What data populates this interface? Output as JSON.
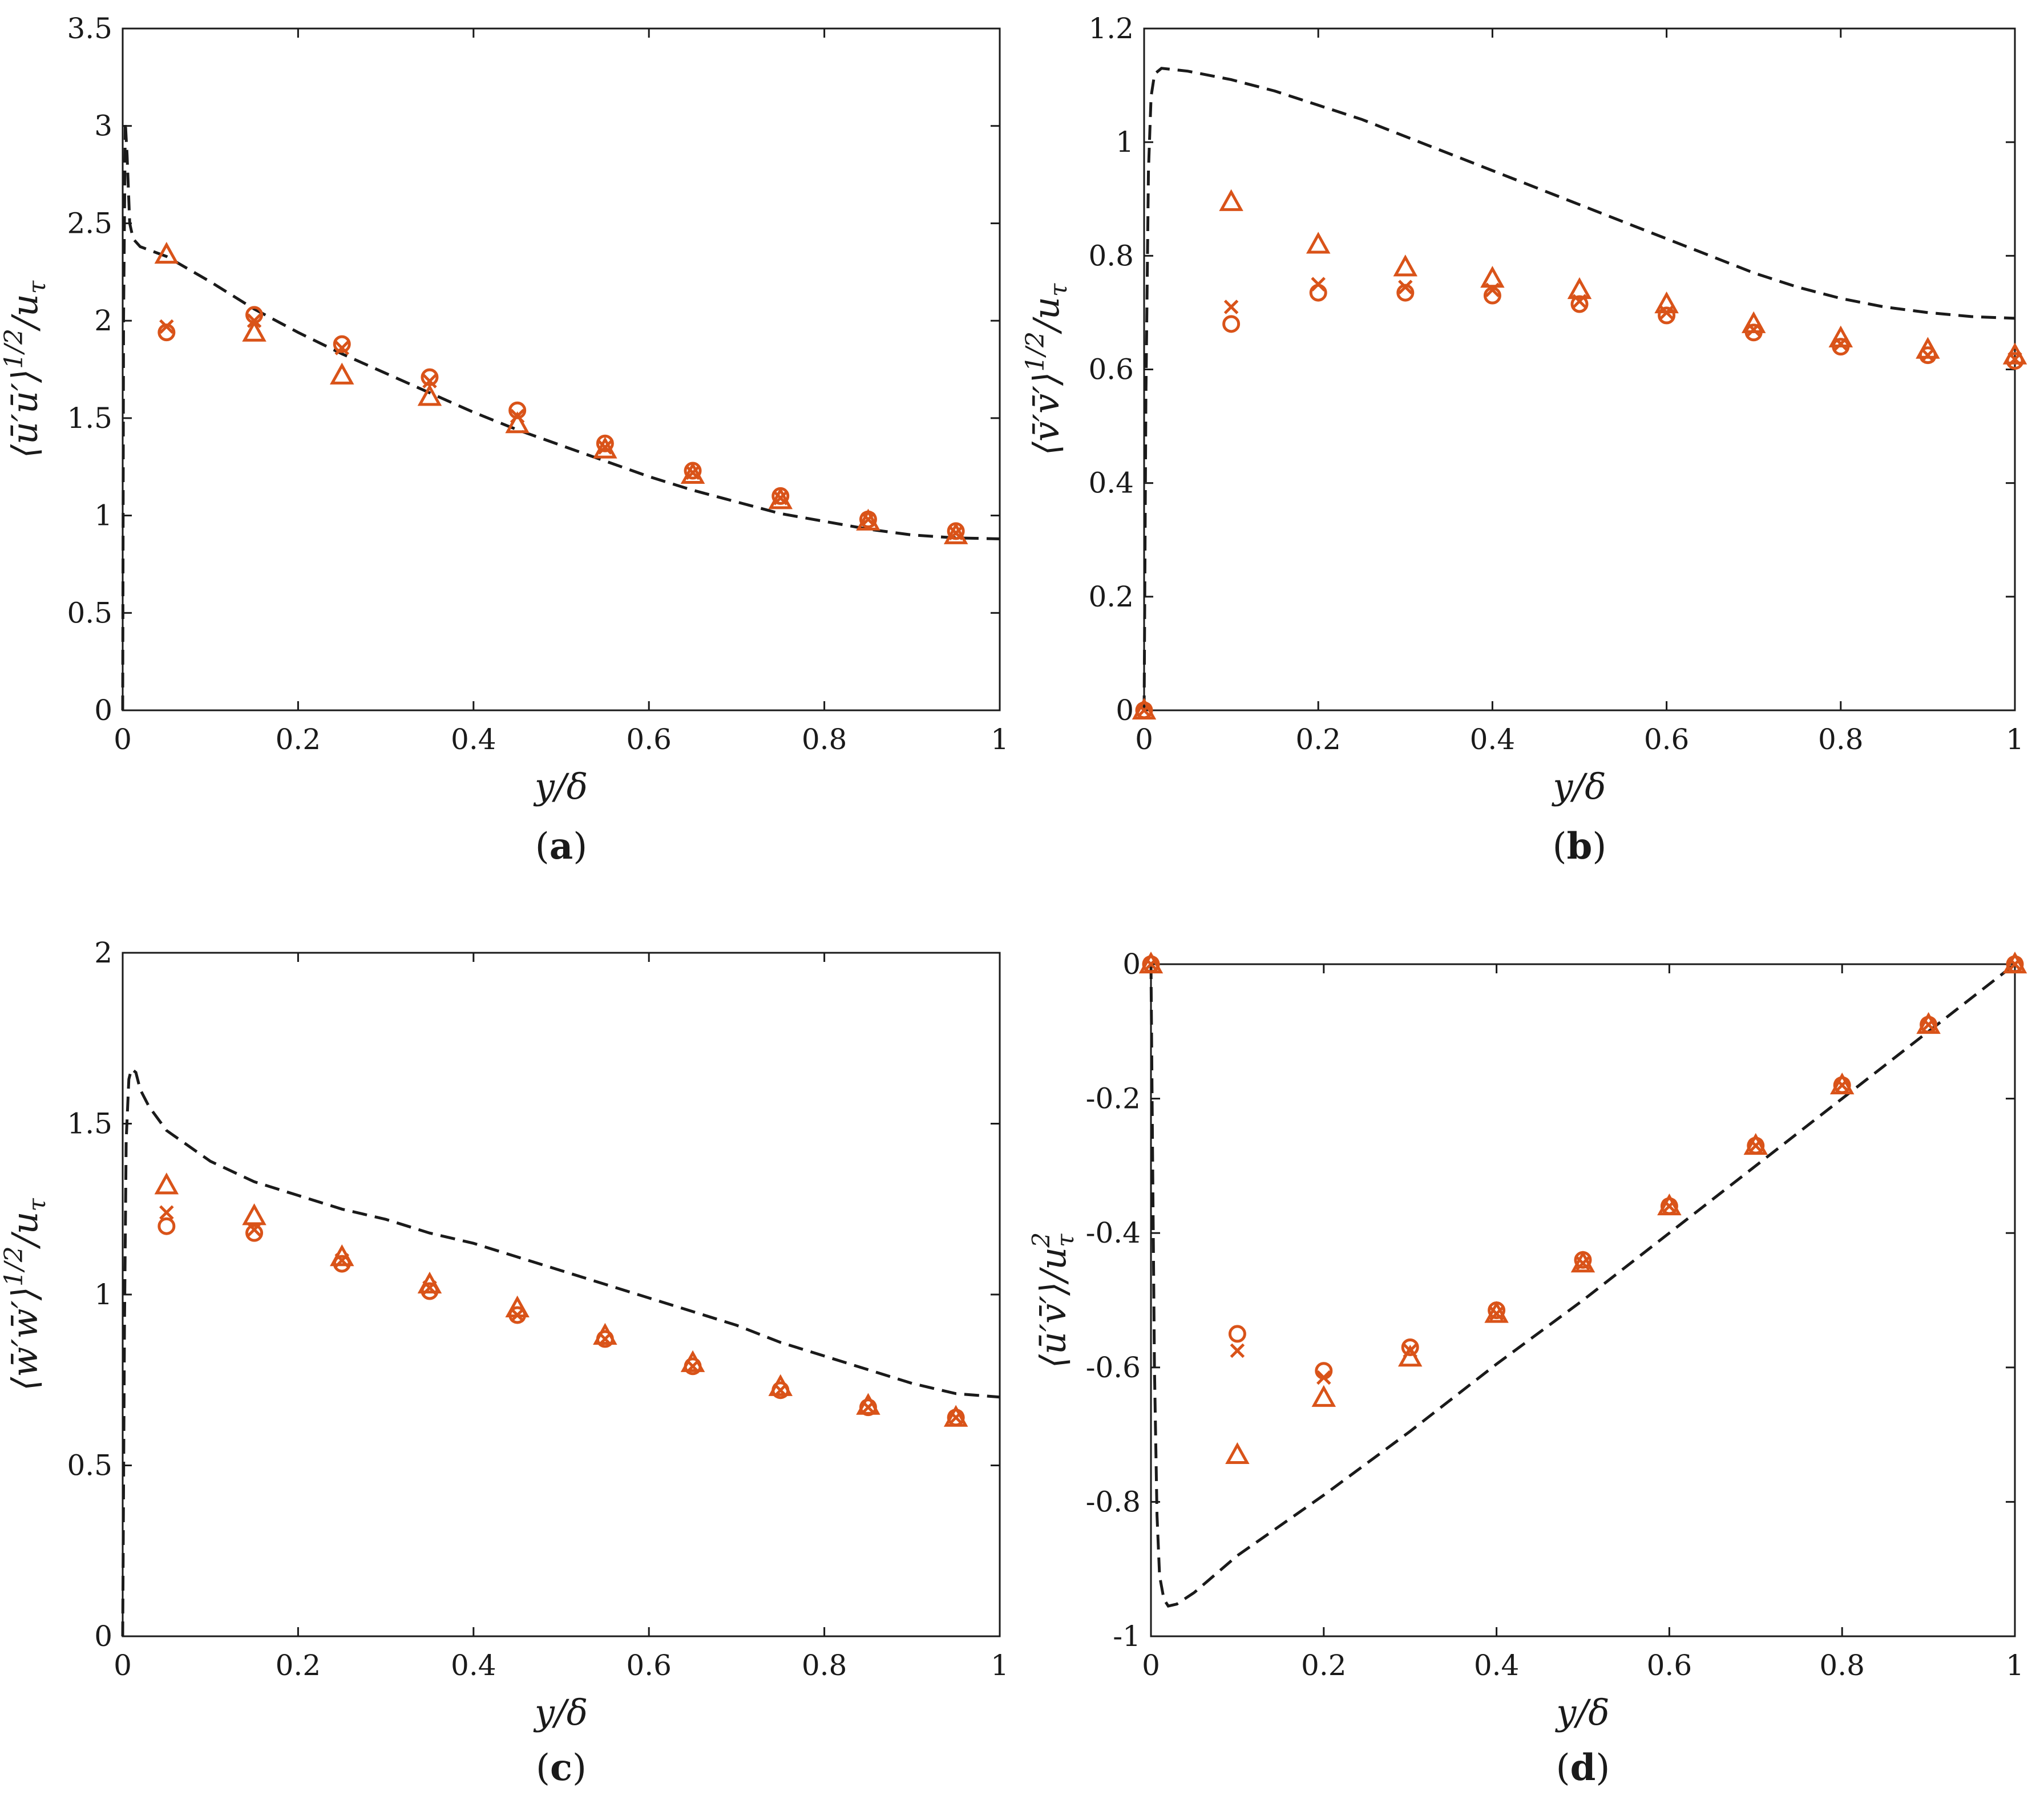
{
  "marker_color": "#d95319",
  "line_color": "#1a1a1a",
  "chart_data": [
    {
      "type": "scatter",
      "panel_label": "a",
      "xlabel": "y/δ",
      "ylabel": "⟨ū′ū′⟩^1/2/u_τ",
      "ylabel_parts": {
        "main": "⟨ū′ū′⟩",
        "sup": "1/2",
        "tail": "/u",
        "sub": "τ"
      },
      "xlim": [
        0,
        1
      ],
      "ylim": [
        0,
        3.5
      ],
      "xticks": [
        0,
        0.2,
        0.4,
        0.6,
        0.8,
        1
      ],
      "yticks": [
        0,
        0.5,
        1,
        1.5,
        2,
        2.5,
        3,
        3.5
      ],
      "xtick_labels": [
        "0",
        "0.2",
        "0.4",
        "0.6",
        "0.8",
        "1"
      ],
      "ytick_labels": [
        "0",
        "0.5",
        "1",
        "1.5",
        "2",
        "2.5",
        "3",
        "3.5"
      ],
      "zero_line": false,
      "series": [
        {
          "name": "dashed reference",
          "kind": "line",
          "x": [
            0,
            0.001,
            0.003,
            0.005,
            0.008,
            0.012,
            0.02,
            0.05,
            0.1,
            0.15,
            0.2,
            0.25,
            0.3,
            0.35,
            0.4,
            0.45,
            0.5,
            0.55,
            0.6,
            0.65,
            0.7,
            0.75,
            0.8,
            0.85,
            0.9,
            0.95,
            1.0
          ],
          "y": [
            0,
            2.0,
            3.02,
            2.85,
            2.5,
            2.42,
            2.38,
            2.33,
            2.2,
            2.06,
            1.94,
            1.83,
            1.73,
            1.63,
            1.53,
            1.44,
            1.36,
            1.28,
            1.2,
            1.13,
            1.07,
            1.01,
            0.97,
            0.93,
            0.9,
            0.885,
            0.88
          ]
        },
        {
          "name": "circle",
          "kind": "circle",
          "x": [
            0.05,
            0.15,
            0.25,
            0.35,
            0.45,
            0.55,
            0.65,
            0.75,
            0.85,
            0.95
          ],
          "y": [
            1.94,
            2.03,
            1.88,
            1.71,
            1.54,
            1.37,
            1.23,
            1.1,
            0.98,
            0.92
          ]
        },
        {
          "name": "cross",
          "kind": "cross",
          "x": [
            0.05,
            0.15,
            0.25,
            0.35,
            0.45,
            0.55,
            0.65,
            0.75,
            0.85,
            0.95
          ],
          "y": [
            1.97,
            2.0,
            1.86,
            1.69,
            1.51,
            1.35,
            1.22,
            1.09,
            0.98,
            0.91
          ]
        },
        {
          "name": "triangle",
          "kind": "triangle",
          "x": [
            0.05,
            0.15,
            0.25,
            0.35,
            0.45,
            0.55,
            0.65,
            0.75,
            0.85,
            0.95
          ],
          "y": [
            2.34,
            1.94,
            1.72,
            1.61,
            1.47,
            1.34,
            1.21,
            1.08,
            0.97,
            0.9
          ]
        }
      ]
    },
    {
      "type": "scatter",
      "panel_label": "b",
      "xlabel": "y/δ",
      "ylabel": "⟨v̄′v̄′⟩^1/2/u_τ",
      "ylabel_parts": {
        "main": "⟨v̄′v̄′⟩",
        "sup": "1/2",
        "tail": "/u",
        "sub": "τ"
      },
      "xlim": [
        0,
        1
      ],
      "ylim": [
        0,
        1.2
      ],
      "xticks": [
        0,
        0.2,
        0.4,
        0.6,
        0.8,
        1
      ],
      "yticks": [
        0,
        0.2,
        0.4,
        0.6,
        0.8,
        1,
        1.2
      ],
      "xtick_labels": [
        "0",
        "0.2",
        "0.4",
        "0.6",
        "0.8",
        "1"
      ],
      "ytick_labels": [
        "0",
        "0.2",
        "0.4",
        "0.6",
        "0.8",
        "1",
        "1.2"
      ],
      "zero_line": false,
      "series": [
        {
          "name": "dashed reference",
          "kind": "line",
          "x": [
            0,
            0.002,
            0.005,
            0.008,
            0.012,
            0.02,
            0.05,
            0.1,
            0.15,
            0.2,
            0.25,
            0.3,
            0.35,
            0.4,
            0.45,
            0.5,
            0.55,
            0.6,
            0.65,
            0.7,
            0.75,
            0.8,
            0.85,
            0.9,
            0.95,
            1.0
          ],
          "y": [
            0,
            0.55,
            0.95,
            1.08,
            1.12,
            1.13,
            1.125,
            1.11,
            1.09,
            1.065,
            1.04,
            1.01,
            0.98,
            0.95,
            0.92,
            0.89,
            0.86,
            0.83,
            0.8,
            0.77,
            0.745,
            0.725,
            0.71,
            0.7,
            0.693,
            0.69
          ]
        },
        {
          "name": "circle",
          "kind": "circle",
          "x": [
            0,
            0.1,
            0.2,
            0.3,
            0.4,
            0.5,
            0.6,
            0.7,
            0.8,
            0.9,
            1.0
          ],
          "y": [
            0,
            0.68,
            0.735,
            0.735,
            0.73,
            0.715,
            0.695,
            0.665,
            0.64,
            0.625,
            0.615
          ]
        },
        {
          "name": "cross",
          "kind": "cross",
          "x": [
            0,
            0.1,
            0.2,
            0.3,
            0.4,
            0.5,
            0.6,
            0.7,
            0.8,
            0.9,
            1.0
          ],
          "y": [
            0,
            0.71,
            0.75,
            0.745,
            0.74,
            0.72,
            0.7,
            0.67,
            0.645,
            0.625,
            0.618
          ]
        },
        {
          "name": "triangle",
          "kind": "triangle",
          "x": [
            0,
            0.1,
            0.2,
            0.3,
            0.4,
            0.5,
            0.6,
            0.7,
            0.8,
            0.9,
            1.0
          ],
          "y": [
            0,
            0.895,
            0.82,
            0.78,
            0.76,
            0.74,
            0.715,
            0.68,
            0.655,
            0.635,
            0.625
          ]
        }
      ]
    },
    {
      "type": "scatter",
      "panel_label": "c",
      "xlabel": "y/δ",
      "ylabel": "⟨w̄′w̄′⟩^1/2/u_τ",
      "ylabel_parts": {
        "main": "⟨w̄′w̄′⟩",
        "sup": "1/2",
        "tail": "/u",
        "sub": "τ"
      },
      "xlim": [
        0,
        1
      ],
      "ylim": [
        0,
        2
      ],
      "xticks": [
        0,
        0.2,
        0.4,
        0.6,
        0.8,
        1
      ],
      "yticks": [
        0,
        0.5,
        1,
        1.5,
        2
      ],
      "xtick_labels": [
        "0",
        "0.2",
        "0.4",
        "0.6",
        "0.8",
        "1"
      ],
      "ytick_labels": [
        "0",
        "0.5",
        "1",
        "1.5",
        "2"
      ],
      "zero_line": false,
      "series": [
        {
          "name": "dashed reference",
          "kind": "line",
          "x": [
            0,
            0.002,
            0.004,
            0.007,
            0.01,
            0.015,
            0.02,
            0.03,
            0.05,
            0.1,
            0.15,
            0.2,
            0.25,
            0.3,
            0.35,
            0.4,
            0.45,
            0.5,
            0.55,
            0.6,
            0.65,
            0.7,
            0.75,
            0.8,
            0.85,
            0.9,
            0.95,
            1.0
          ],
          "y": [
            0,
            0.9,
            1.45,
            1.63,
            1.66,
            1.65,
            1.6,
            1.55,
            1.48,
            1.39,
            1.33,
            1.29,
            1.25,
            1.22,
            1.18,
            1.15,
            1.11,
            1.07,
            1.03,
            0.99,
            0.95,
            0.91,
            0.86,
            0.82,
            0.78,
            0.74,
            0.71,
            0.7
          ]
        },
        {
          "name": "circle",
          "kind": "circle",
          "x": [
            0.05,
            0.15,
            0.25,
            0.35,
            0.45,
            0.55,
            0.65,
            0.75,
            0.85,
            0.95
          ],
          "y": [
            1.2,
            1.18,
            1.09,
            1.01,
            0.94,
            0.87,
            0.79,
            0.72,
            0.67,
            0.64
          ]
        },
        {
          "name": "cross",
          "kind": "cross",
          "x": [
            0.05,
            0.15,
            0.25,
            0.35,
            0.45,
            0.55,
            0.65,
            0.75,
            0.85,
            0.95
          ],
          "y": [
            1.24,
            1.19,
            1.1,
            1.02,
            0.94,
            0.87,
            0.79,
            0.72,
            0.67,
            0.64
          ]
        },
        {
          "name": "triangle",
          "kind": "triangle",
          "x": [
            0.05,
            0.15,
            0.25,
            0.35,
            0.45,
            0.55,
            0.65,
            0.75,
            0.85,
            0.95
          ],
          "y": [
            1.32,
            1.23,
            1.11,
            1.03,
            0.96,
            0.88,
            0.8,
            0.73,
            0.675,
            0.64
          ]
        }
      ]
    },
    {
      "type": "scatter",
      "panel_label": "d",
      "xlabel": "y/δ",
      "ylabel": "⟨ū′v̄′⟩/u_τ^2",
      "ylabel_parts": {
        "main": "⟨ū′v̄′⟩",
        "sup": "",
        "tail": "/u",
        "sub": "τ",
        "sub_sup": "2"
      },
      "xlim": [
        0,
        1
      ],
      "ylim": [
        -1,
        0
      ],
      "xticks": [
        0,
        0.2,
        0.4,
        0.6,
        0.8,
        1
      ],
      "yticks": [
        -1,
        -0.8,
        -0.6,
        -0.4,
        -0.2,
        0
      ],
      "xtick_labels": [
        "0",
        "0.2",
        "0.4",
        "0.6",
        "0.8",
        "1"
      ],
      "ytick_labels": [
        "-1",
        "-0.8",
        "-0.6",
        "-0.4",
        "-0.2",
        "0"
      ],
      "zero_line": true,
      "series": [
        {
          "name": "dashed reference",
          "kind": "line",
          "x": [
            0,
            0.002,
            0.004,
            0.007,
            0.01,
            0.015,
            0.02,
            0.03,
            0.05,
            0.1,
            0.2,
            0.3,
            0.4,
            0.5,
            0.6,
            0.7,
            0.8,
            0.9,
            1.0
          ],
          "y": [
            0,
            -0.3,
            -0.6,
            -0.82,
            -0.91,
            -0.945,
            -0.955,
            -0.952,
            -0.935,
            -0.88,
            -0.79,
            -0.695,
            -0.595,
            -0.5,
            -0.4,
            -0.3,
            -0.2,
            -0.1,
            0
          ]
        },
        {
          "name": "circle",
          "kind": "circle",
          "x": [
            0,
            0.1,
            0.2,
            0.3,
            0.4,
            0.5,
            0.6,
            0.7,
            0.8,
            0.9,
            1.0
          ],
          "y": [
            0,
            -0.55,
            -0.605,
            -0.57,
            -0.515,
            -0.44,
            -0.36,
            -0.27,
            -0.18,
            -0.09,
            0
          ]
        },
        {
          "name": "cross",
          "kind": "cross",
          "x": [
            0,
            0.1,
            0.2,
            0.3,
            0.4,
            0.5,
            0.6,
            0.7,
            0.8,
            0.9,
            1.0
          ],
          "y": [
            0,
            -0.575,
            -0.615,
            -0.575,
            -0.52,
            -0.445,
            -0.36,
            -0.27,
            -0.18,
            -0.09,
            0
          ]
        },
        {
          "name": "triangle",
          "kind": "triangle",
          "x": [
            0,
            0.1,
            0.2,
            0.3,
            0.4,
            0.5,
            0.6,
            0.7,
            0.8,
            0.9,
            1.0
          ],
          "y": [
            0,
            -0.73,
            -0.645,
            -0.585,
            -0.52,
            -0.445,
            -0.36,
            -0.27,
            -0.18,
            -0.09,
            0
          ]
        }
      ]
    }
  ]
}
